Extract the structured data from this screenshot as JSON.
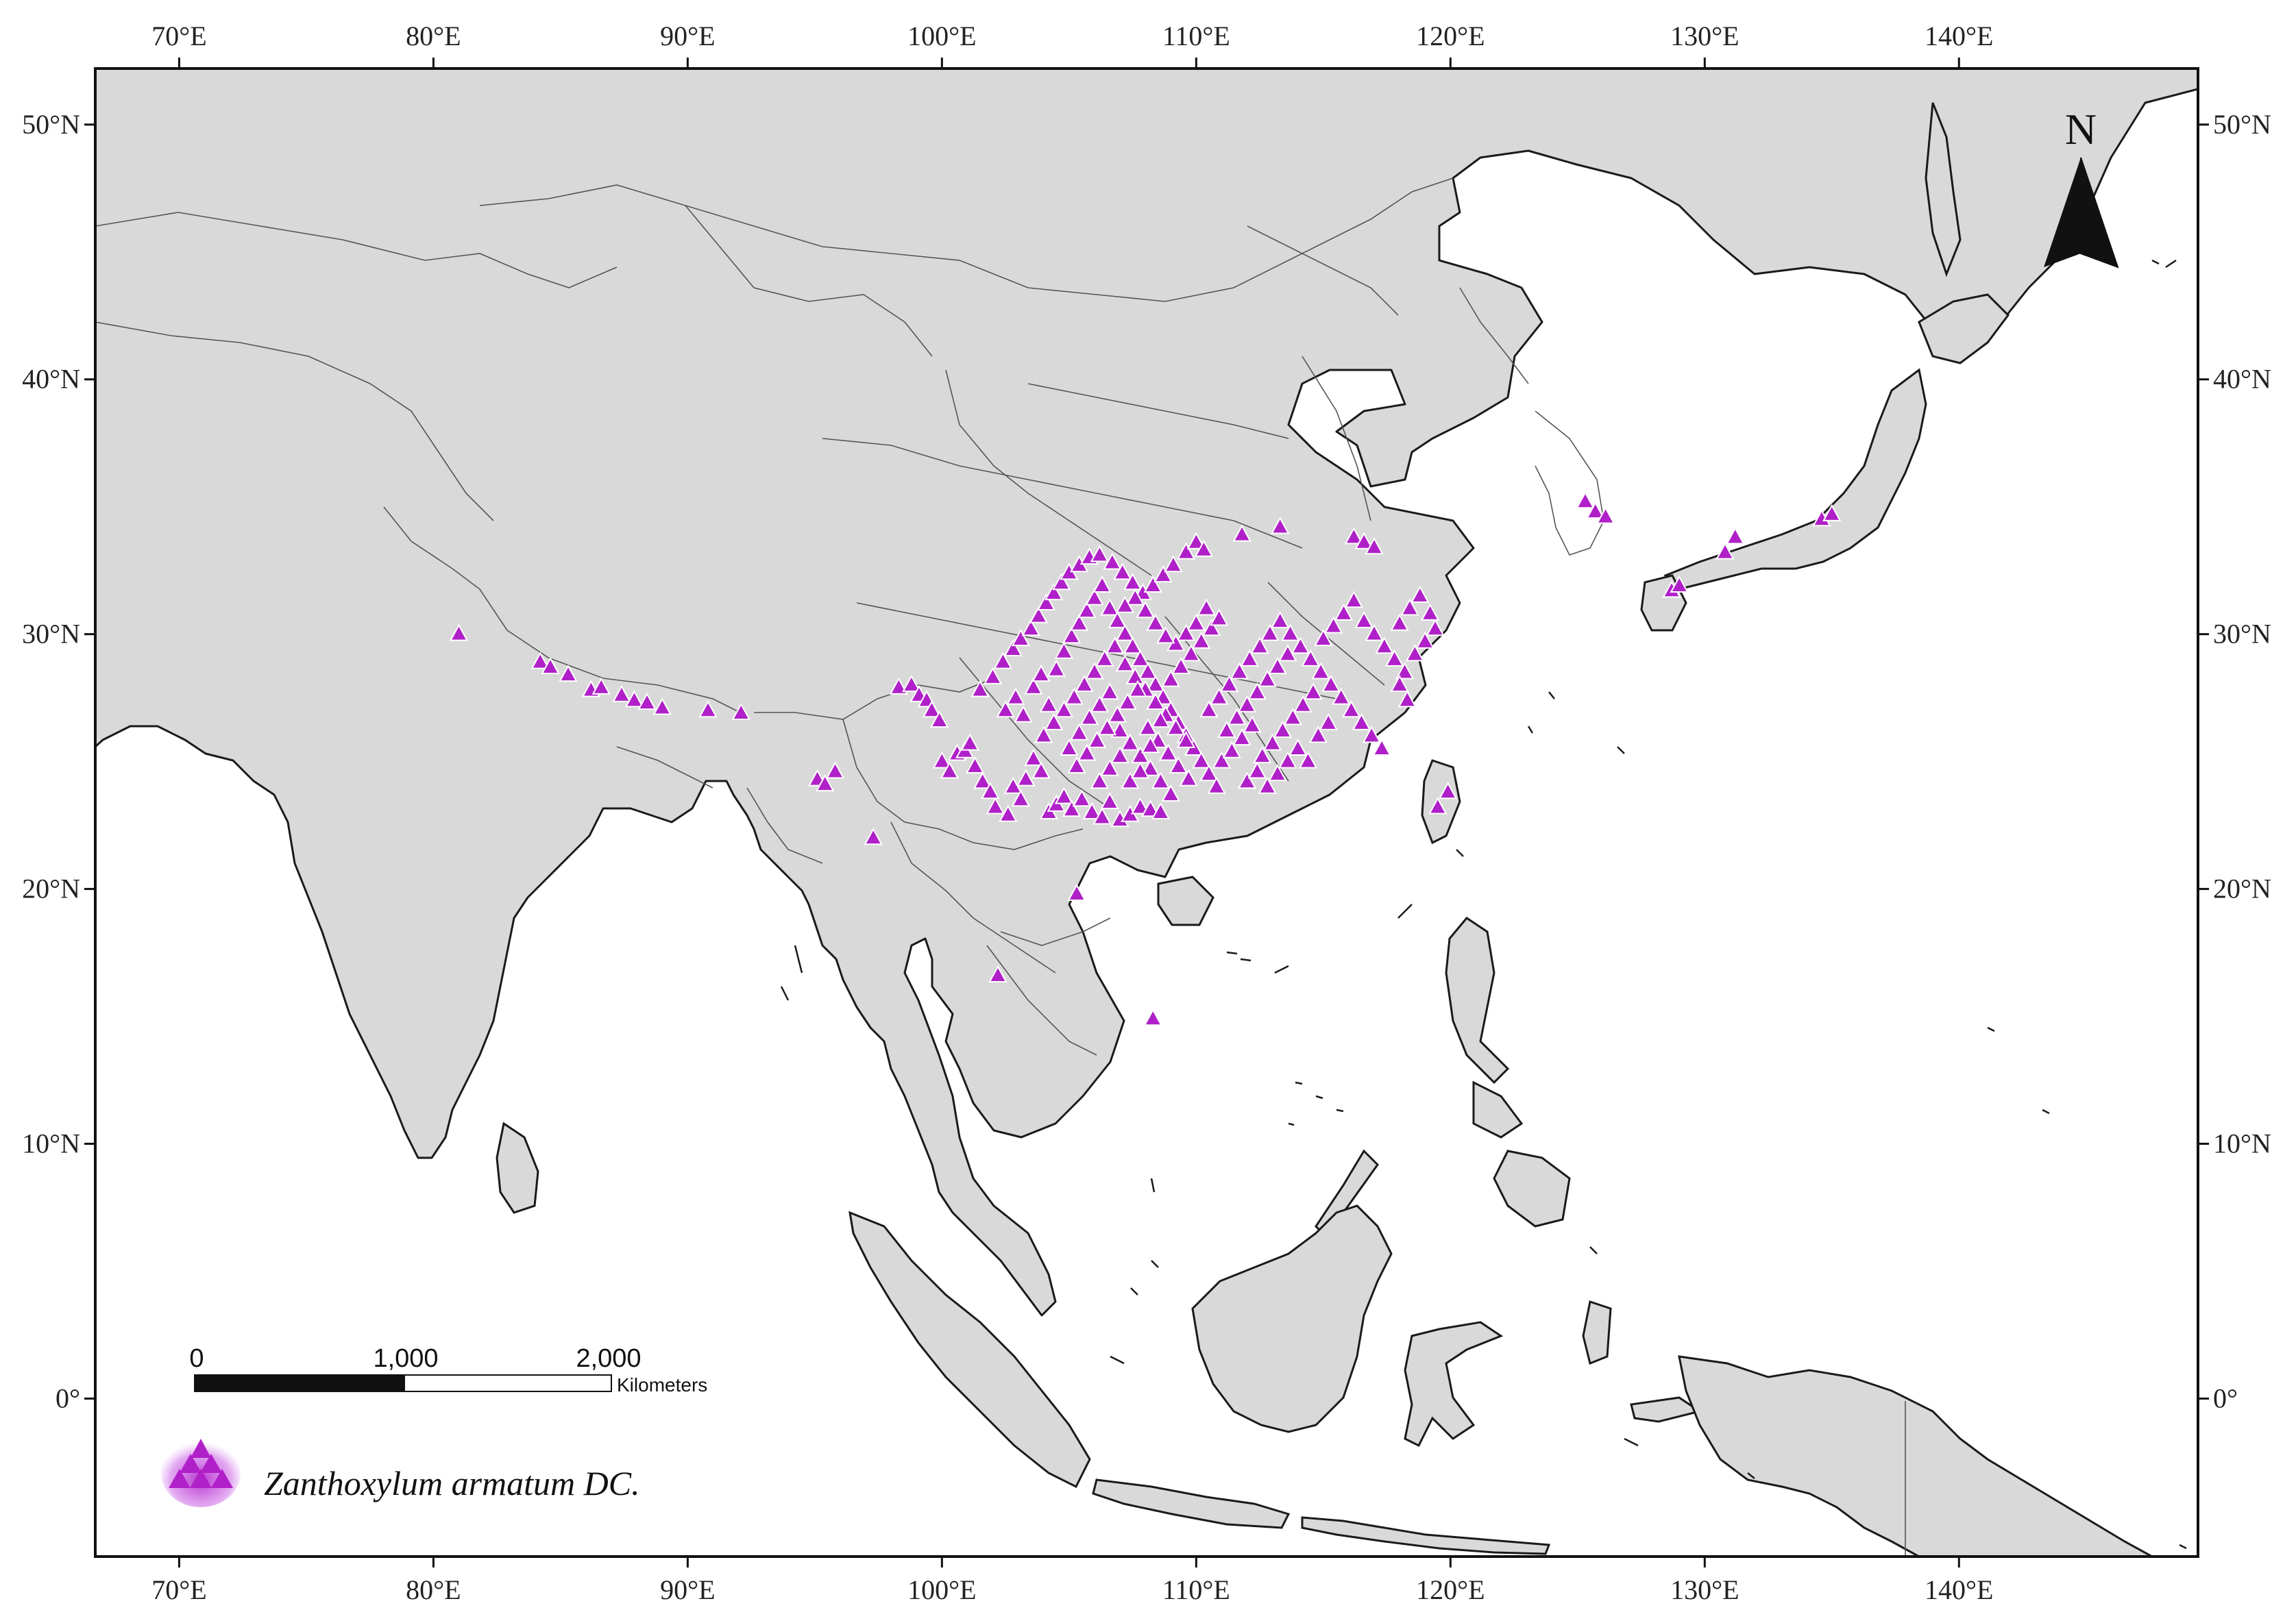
{
  "map": {
    "lon_ticks": [
      {
        "value": 70,
        "label": "70°E"
      },
      {
        "value": 80,
        "label": "80°E"
      },
      {
        "value": 90,
        "label": "90°E"
      },
      {
        "value": 100,
        "label": "100°E"
      },
      {
        "value": 110,
        "label": "110°E"
      },
      {
        "value": 120,
        "label": "120°E"
      },
      {
        "value": 130,
        "label": "130°E"
      },
      {
        "value": 140,
        "label": "140°E"
      }
    ],
    "lat_ticks": [
      {
        "value": 50,
        "label": "50°N"
      },
      {
        "value": 40,
        "label": "40°N"
      },
      {
        "value": 30,
        "label": "30°N"
      },
      {
        "value": 20,
        "label": "20°N"
      },
      {
        "value": 10,
        "label": "10°N"
      },
      {
        "value": 0,
        "label": "0°"
      }
    ],
    "extent": {
      "lon_min": 66.7,
      "lon_max": 149.4,
      "lat_min": -6.2,
      "lat_max": 52.2
    },
    "colors": {
      "land": "#d9d9d9",
      "sea": "#ffffff",
      "marker": "#b020c8",
      "marker_outline": "#ffffff"
    }
  },
  "north_arrow": {
    "letter": "N"
  },
  "scale_bar": {
    "labels": [
      "0",
      "1,000",
      "2,000"
    ],
    "unit": "Kilometers"
  },
  "legend": {
    "label": "Zanthoxylum armatum DC.",
    "icon": "purple-triangle-marker-icon"
  },
  "occurrences": [
    [
      81.0,
      30.0
    ],
    [
      84.2,
      28.9
    ],
    [
      84.6,
      28.7
    ],
    [
      85.3,
      28.4
    ],
    [
      86.2,
      27.8
    ],
    [
      86.6,
      27.9
    ],
    [
      87.4,
      27.6
    ],
    [
      87.9,
      27.4
    ],
    [
      88.4,
      27.3
    ],
    [
      89.0,
      27.1
    ],
    [
      90.8,
      27.0
    ],
    [
      92.1,
      26.9
    ],
    [
      95.1,
      24.3
    ],
    [
      95.4,
      24.1
    ],
    [
      95.8,
      24.6
    ],
    [
      97.3,
      22.0
    ],
    [
      98.3,
      27.9
    ],
    [
      98.8,
      28.0
    ],
    [
      99.1,
      27.6
    ],
    [
      99.4,
      27.4
    ],
    [
      99.6,
      27.0
    ],
    [
      99.9,
      26.6
    ],
    [
      100.0,
      25.0
    ],
    [
      100.3,
      24.6
    ],
    [
      100.6,
      25.3
    ],
    [
      100.9,
      25.4
    ],
    [
      101.1,
      25.7
    ],
    [
      101.3,
      24.8
    ],
    [
      101.6,
      24.2
    ],
    [
      101.9,
      23.8
    ],
    [
      102.1,
      23.2
    ],
    [
      102.2,
      16.6
    ],
    [
      102.6,
      22.9
    ],
    [
      102.8,
      24.0
    ],
    [
      103.1,
      23.5
    ],
    [
      103.3,
      24.3
    ],
    [
      103.6,
      25.1
    ],
    [
      103.9,
      24.6
    ],
    [
      104.2,
      23.0
    ],
    [
      104.5,
      23.3
    ],
    [
      104.8,
      23.6
    ],
    [
      105.3,
      19.8
    ],
    [
      105.1,
      23.1
    ],
    [
      105.5,
      23.5
    ],
    [
      105.9,
      23.0
    ],
    [
      106.3,
      22.8
    ],
    [
      106.6,
      23.4
    ],
    [
      107.0,
      22.7
    ],
    [
      107.4,
      22.9
    ],
    [
      107.8,
      23.2
    ],
    [
      108.2,
      23.1
    ],
    [
      108.6,
      23.0
    ],
    [
      108.3,
      14.9
    ],
    [
      101.5,
      27.8
    ],
    [
      102.0,
      28.3
    ],
    [
      102.4,
      28.9
    ],
    [
      102.8,
      29.4
    ],
    [
      103.1,
      29.8
    ],
    [
      103.5,
      30.2
    ],
    [
      103.8,
      30.7
    ],
    [
      104.1,
      31.2
    ],
    [
      104.4,
      31.6
    ],
    [
      104.7,
      32.0
    ],
    [
      105.0,
      32.4
    ],
    [
      105.4,
      32.7
    ],
    [
      105.8,
      33.0
    ],
    [
      106.2,
      33.1
    ],
    [
      106.7,
      32.8
    ],
    [
      107.1,
      32.4
    ],
    [
      107.5,
      32.0
    ],
    [
      107.9,
      31.6
    ],
    [
      108.3,
      31.9
    ],
    [
      108.7,
      32.3
    ],
    [
      109.1,
      32.7
    ],
    [
      109.6,
      33.2
    ],
    [
      110.0,
      33.6
    ],
    [
      110.3,
      33.3
    ],
    [
      111.8,
      33.9
    ],
    [
      113.3,
      34.2
    ],
    [
      102.5,
      27.0
    ],
    [
      102.9,
      27.5
    ],
    [
      103.2,
      26.8
    ],
    [
      103.6,
      27.9
    ],
    [
      103.9,
      28.4
    ],
    [
      104.2,
      27.2
    ],
    [
      104.5,
      28.6
    ],
    [
      104.8,
      29.3
    ],
    [
      105.1,
      29.9
    ],
    [
      105.4,
      30.4
    ],
    [
      105.7,
      30.9
    ],
    [
      106.0,
      31.4
    ],
    [
      106.3,
      31.9
    ],
    [
      106.6,
      31.0
    ],
    [
      106.9,
      30.5
    ],
    [
      107.2,
      30.0
    ],
    [
      107.5,
      29.5
    ],
    [
      107.8,
      29.0
    ],
    [
      108.1,
      28.5
    ],
    [
      108.4,
      28.0
    ],
    [
      108.7,
      27.5
    ],
    [
      109.0,
      27.0
    ],
    [
      109.3,
      26.5
    ],
    [
      109.6,
      26.0
    ],
    [
      109.9,
      25.5
    ],
    [
      110.2,
      25.0
    ],
    [
      110.5,
      24.5
    ],
    [
      110.8,
      24.0
    ],
    [
      104.0,
      26.0
    ],
    [
      104.4,
      26.5
    ],
    [
      104.8,
      27.0
    ],
    [
      105.2,
      27.5
    ],
    [
      105.6,
      28.0
    ],
    [
      106.0,
      28.5
    ],
    [
      106.4,
      29.0
    ],
    [
      106.8,
      29.5
    ],
    [
      107.2,
      28.8
    ],
    [
      107.6,
      28.3
    ],
    [
      108.0,
      27.8
    ],
    [
      108.4,
      27.3
    ],
    [
      108.8,
      26.8
    ],
    [
      109.2,
      26.3
    ],
    [
      109.6,
      25.8
    ],
    [
      105.0,
      25.5
    ],
    [
      105.4,
      26.1
    ],
    [
      105.8,
      26.7
    ],
    [
      106.2,
      27.2
    ],
    [
      106.6,
      27.7
    ],
    [
      107.0,
      26.2
    ],
    [
      107.4,
      25.7
    ],
    [
      107.8,
      25.2
    ],
    [
      108.2,
      24.7
    ],
    [
      108.6,
      24.2
    ],
    [
      109.0,
      23.7
    ],
    [
      105.3,
      24.8
    ],
    [
      105.7,
      25.3
    ],
    [
      106.1,
      25.8
    ],
    [
      106.5,
      26.3
    ],
    [
      106.9,
      26.8
    ],
    [
      107.3,
      27.3
    ],
    [
      107.7,
      27.8
    ],
    [
      108.1,
      26.3
    ],
    [
      108.5,
      25.8
    ],
    [
      108.9,
      25.3
    ],
    [
      109.3,
      24.8
    ],
    [
      109.7,
      24.3
    ],
    [
      106.2,
      24.2
    ],
    [
      106.6,
      24.7
    ],
    [
      107.0,
      25.2
    ],
    [
      107.4,
      24.2
    ],
    [
      107.8,
      24.6
    ],
    [
      108.2,
      25.6
    ],
    [
      108.6,
      26.6
    ],
    [
      109.0,
      28.2
    ],
    [
      109.4,
      28.7
    ],
    [
      109.8,
      29.2
    ],
    [
      110.2,
      29.7
    ],
    [
      110.6,
      30.2
    ],
    [
      110.9,
      30.6
    ],
    [
      110.4,
      31.0
    ],
    [
      110.0,
      30.4
    ],
    [
      109.6,
      30.0
    ],
    [
      109.2,
      29.6
    ],
    [
      108.8,
      29.9
    ],
    [
      108.4,
      30.4
    ],
    [
      108.0,
      30.9
    ],
    [
      107.6,
      31.4
    ],
    [
      107.2,
      31.1
    ],
    [
      110.5,
      27.0
    ],
    [
      110.9,
      27.5
    ],
    [
      111.3,
      28.0
    ],
    [
      111.7,
      28.5
    ],
    [
      112.1,
      29.0
    ],
    [
      112.5,
      29.5
    ],
    [
      112.9,
      30.0
    ],
    [
      113.3,
      30.5
    ],
    [
      113.7,
      30.0
    ],
    [
      114.1,
      29.5
    ],
    [
      114.5,
      29.0
    ],
    [
      114.9,
      28.5
    ],
    [
      115.3,
      28.0
    ],
    [
      115.7,
      27.5
    ],
    [
      116.1,
      27.0
    ],
    [
      116.5,
      26.5
    ],
    [
      116.9,
      26.0
    ],
    [
      117.3,
      25.5
    ],
    [
      111.2,
      26.2
    ],
    [
      111.6,
      26.7
    ],
    [
      112.0,
      27.2
    ],
    [
      112.4,
      27.7
    ],
    [
      112.8,
      28.2
    ],
    [
      113.2,
      28.7
    ],
    [
      113.6,
      29.2
    ],
    [
      111.0,
      25.0
    ],
    [
      111.4,
      25.4
    ],
    [
      111.8,
      25.9
    ],
    [
      112.2,
      26.4
    ],
    [
      112.6,
      25.2
    ],
    [
      113.0,
      25.7
    ],
    [
      113.4,
      26.2
    ],
    [
      113.8,
      26.7
    ],
    [
      114.2,
      27.2
    ],
    [
      114.6,
      27.7
    ],
    [
      112.0,
      24.2
    ],
    [
      112.4,
      24.6
    ],
    [
      112.8,
      24.0
    ],
    [
      113.2,
      24.5
    ],
    [
      113.6,
      25.0
    ],
    [
      114.0,
      25.5
    ],
    [
      114.4,
      25.0
    ],
    [
      114.8,
      26.0
    ],
    [
      115.2,
      26.5
    ],
    [
      115.0,
      29.8
    ],
    [
      115.4,
      30.3
    ],
    [
      115.8,
      30.8
    ],
    [
      116.2,
      31.3
    ],
    [
      116.6,
      30.5
    ],
    [
      117.0,
      30.0
    ],
    [
      117.4,
      29.5
    ],
    [
      117.8,
      29.0
    ],
    [
      118.2,
      28.5
    ],
    [
      118.6,
      29.2
    ],
    [
      119.0,
      29.7
    ],
    [
      119.4,
      30.2
    ],
    [
      118.0,
      30.4
    ],
    [
      118.4,
      31.0
    ],
    [
      118.8,
      31.5
    ],
    [
      119.2,
      30.8
    ],
    [
      116.2,
      33.8
    ],
    [
      116.6,
      33.6
    ],
    [
      117.0,
      33.4
    ],
    [
      118.0,
      28.0
    ],
    [
      118.3,
      27.4
    ],
    [
      119.5,
      23.2
    ],
    [
      119.9,
      23.8
    ],
    [
      125.3,
      35.2
    ],
    [
      125.7,
      34.8
    ],
    [
      126.1,
      34.6
    ],
    [
      128.7,
      31.7
    ],
    [
      129.0,
      31.9
    ],
    [
      130.8,
      33.2
    ],
    [
      131.2,
      33.8
    ],
    [
      134.6,
      34.5
    ],
    [
      135.0,
      34.7
    ]
  ]
}
